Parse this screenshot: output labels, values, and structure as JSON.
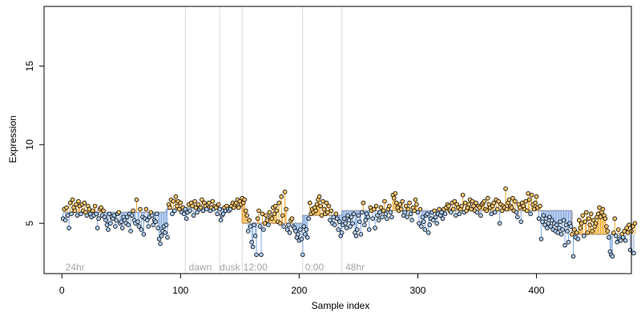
{
  "chart_data": {
    "type": "scatter",
    "title": "",
    "xlabel": "Sample index",
    "ylabel": "Expression",
    "xlim": [
      -15,
      480
    ],
    "ylim": [
      1.8,
      18.8
    ],
    "x_ticks": [
      0,
      100,
      200,
      300,
      400
    ],
    "y_ticks": [
      5,
      10,
      15
    ],
    "baseline_segments": [
      {
        "x_start": 1,
        "x_end": 88,
        "y": 5.7
      },
      {
        "x_start": 88,
        "x_end": 104,
        "y": 5.9
      },
      {
        "x_start": 104,
        "x_end": 133,
        "y": 6.0
      },
      {
        "x_start": 133,
        "x_end": 152,
        "y": 6.0
      },
      {
        "x_start": 152,
        "x_end": 203,
        "y": 5.0
      },
      {
        "x_start": 203,
        "x_end": 236,
        "y": 5.5
      },
      {
        "x_start": 236,
        "x_end": 430,
        "y": 5.8
      },
      {
        "x_start": 430,
        "x_end": 466,
        "y": 4.3
      }
    ],
    "region_boundaries": [
      104,
      133,
      152,
      203,
      236
    ],
    "region_labels": [
      {
        "text": "24hr",
        "x": 3
      },
      {
        "text": "dawn",
        "x": 107
      },
      {
        "text": "dusk",
        "x": 133
      },
      {
        "text": "12:00",
        "x": 153
      },
      {
        "text": "0:00",
        "x": 205
      },
      {
        "text": "48hr",
        "x": 239
      }
    ],
    "colors": {
      "above": "#f5a623",
      "below": "#7ea6e0",
      "baseline": "#a0a0a0",
      "boundary": "#d9d9d9",
      "point_fill_above": "#f5c26b",
      "point_fill_below": "#a9c8f0"
    },
    "values": [
      5.3,
      5.9,
      5.2,
      6.0,
      5.5,
      4.7,
      6.3,
      5.6,
      6.5,
      6.0,
      5.8,
      6.2,
      5.5,
      6.4,
      6.1,
      5.6,
      6.2,
      5.8,
      6.3,
      5.7,
      5.5,
      6.1,
      5.9,
      5.6,
      5.4,
      5.8,
      5.5,
      6.1,
      5.6,
      4.7,
      5.3,
      5.9,
      6.0,
      5.5,
      5.8,
      5.4,
      5.2,
      4.9,
      4.6,
      5.6,
      5.0,
      5.4,
      5.3,
      5.5,
      4.8,
      5.2,
      5.6,
      5.7,
      5.0,
      5.1,
      4.7,
      5.4,
      5.2,
      5.0,
      5.4,
      4.9,
      5.6,
      4.5,
      5.5,
      5.8,
      5.2,
      5.0,
      6.5,
      5.1,
      4.8,
      5.9,
      4.6,
      5.4,
      4.3,
      5.3,
      5.9,
      5.2,
      4.8,
      5.4,
      5.7,
      5.5,
      4.9,
      5.2,
      5.1,
      5.6,
      4.7,
      4.0,
      3.7,
      4.2,
      4.5,
      4.8,
      4.4,
      4.9,
      4.1,
      6.2,
      6.0,
      6.5,
      5.6,
      6.4,
      5.8,
      6.7,
      6.1,
      6.4,
      5.9,
      6.3,
      5.7,
      6.0,
      5.6,
      5.9,
      5.3,
      5.7,
      6.2,
      5.8,
      6.3,
      6.1,
      5.5,
      6.4,
      6.0,
      5.7,
      6.2,
      5.9,
      6.0,
      6.5,
      5.8,
      6.3,
      6.1,
      5.9,
      6.2,
      6.3,
      5.8,
      6.0,
      6.4,
      5.9,
      6.1,
      6.0,
      5.6,
      6.2,
      5.9,
      5.2,
      5.5,
      5.6,
      6.0,
      5.8,
      6.1,
      5.9,
      5.8,
      5.9,
      6.1,
      6.3,
      6.0,
      6.2,
      6.3,
      6.5,
      6.0,
      6.4,
      6.2,
      6.6,
      6.3,
      6.5,
      5.8,
      5.5,
      4.5,
      5.2,
      4.8,
      3.8,
      3.5,
      4.9,
      4.2,
      3.0,
      5.3,
      5.8,
      4.8,
      3.0,
      5.6,
      4.6,
      5.0,
      5.5,
      5.2,
      4.9,
      5.7,
      5.4,
      5.3,
      6.0,
      5.6,
      6.1,
      5.8,
      5.1,
      6.3,
      5.0,
      6.7,
      5.5,
      4.8,
      7.0,
      5.9,
      4.6,
      4.9,
      4.4,
      5.2,
      5.3,
      4.8,
      4.7,
      4.5,
      4.1,
      4.3,
      3.9,
      4.6,
      4.0,
      3.0,
      4.8,
      4.3,
      4.6,
      4.1,
      5.3,
      6.3,
      5.6,
      5.9,
      5.7,
      6.0,
      5.8,
      6.2,
      6.5,
      6.7,
      6.1,
      5.5,
      6.4,
      5.9,
      5.6,
      6.3,
      5.7,
      6.1,
      5.2,
      5.8,
      5.0,
      5.4,
      4.9,
      5.6,
      5.3,
      4.6,
      5.1,
      4.2,
      4.4,
      4.9,
      5.3,
      5.0,
      4.7,
      5.5,
      5.2,
      4.8,
      5.4,
      5.0,
      5.6,
      4.4,
      4.2,
      4.6,
      5.5,
      5.1,
      4.3,
      5.7,
      6.3,
      4.9,
      5.2,
      5.6,
      5.4,
      4.6,
      6.0,
      5.8,
      5.3,
      5.9,
      4.7,
      6.1,
      5.5,
      5.2,
      5.7,
      6.0,
      5.4,
      5.8,
      6.4,
      5.6,
      5.3,
      5.9,
      6.1,
      5.7,
      5.4,
      6.8,
      6.6,
      6.9,
      6.3,
      6.0,
      5.8,
      6.2,
      5.9,
      6.4,
      5.5,
      5.7,
      6.1,
      5.4,
      5.9,
      6.3,
      5.6,
      5.2,
      6.0,
      5.8,
      6.5,
      6.2,
      5.7,
      5.0,
      5.9,
      4.8,
      5.4,
      5.1,
      4.6,
      5.5,
      5.6,
      4.4,
      4.9,
      5.3,
      5.7,
      5.2,
      5.8,
      5.4,
      5.0,
      5.6,
      5.9,
      5.5,
      5.7,
      5.3,
      5.9,
      5.6,
      6.0,
      6.2,
      6.1,
      5.8,
      5.7,
      6.3,
      5.9,
      6.4,
      5.5,
      6.2,
      6.0,
      5.6,
      5.9,
      6.1,
      6.8,
      5.7,
      6.3,
      5.8,
      6.0,
      6.2,
      6.5,
      5.9,
      6.4,
      6.1,
      5.8,
      6.3,
      5.7,
      6.1,
      6.0,
      5.5,
      6.2,
      6.3,
      6.4,
      5.9,
      5.8,
      6.6,
      6.2,
      6.0,
      5.6,
      6.1,
      6.3,
      5.7,
      6.5,
      5.9,
      6.4,
      5.0,
      6.2,
      5.8,
      6.1,
      6.0,
      7.2,
      5.9,
      6.3,
      6.5,
      6.1,
      6.0,
      6.6,
      5.8,
      6.4,
      5.7,
      5.4,
      6.2,
      6.0,
      5.1,
      6.3,
      6.1,
      5.9,
      6.4,
      5.8,
      6.9,
      6.5,
      5.6,
      6.8,
      6.2,
      5.9,
      6.3,
      6.7,
      6.0,
      5.3,
      6.1,
      4.0,
      5.1,
      5.5,
      4.9,
      5.3,
      4.7,
      5.0,
      5.4,
      4.8,
      5.2,
      4.6,
      5.0,
      4.5,
      4.9,
      4.4,
      4.7,
      5.1,
      4.3,
      4.6,
      5.2,
      3.6,
      4.9,
      4.5,
      3.8,
      5.0,
      4.8,
      4.3,
      2.9,
      4.6,
      4.1,
      4.4,
      4.0,
      5.2,
      4.7,
      5.0,
      5.5,
      4.2,
      5.1,
      5.7,
      4.4,
      5.3,
      4.9,
      5.6,
      4.5,
      5.2,
      4.8,
      5.0,
      5.4,
      5.6,
      6.0,
      5.4,
      5.7,
      5.9,
      5.5,
      5.3,
      4.8,
      4.5,
      4.1,
      3.2,
      3.0,
      2.9,
      4.4,
      5.3,
      4.2,
      3.8,
      4.6,
      4.0,
      3.9,
      4.3,
      4.1,
      4.5,
      3.9,
      4.7,
      4.4,
      4.9,
      3.3,
      4.5,
      4.8,
      3.1,
      5.0
    ]
  }
}
